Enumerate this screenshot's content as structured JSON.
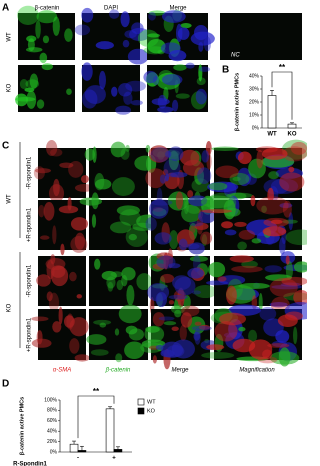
{
  "figure": {
    "A": {
      "label": "A",
      "columns": [
        "β-catenin",
        "DAPI",
        "Merge"
      ],
      "rows": [
        "WT",
        "KO"
      ],
      "control": "NC"
    },
    "B": {
      "label": "B"
    },
    "C": {
      "label": "C",
      "groups": [
        "WT",
        "KO"
      ],
      "rows": [
        "-R-spondin1",
        "+R-spondin1",
        "-R-spondin1",
        "+R-spondin1"
      ],
      "columns": [
        "α-SMA",
        "β-catenin",
        "Merge",
        "Magnification"
      ]
    },
    "D": {
      "label": "D"
    }
  },
  "chart_data": [
    {
      "type": "bar",
      "y_label": "β-catenin active PMCs",
      "categories": [
        "WT",
        "KO"
      ],
      "values": [
        25,
        3
      ],
      "errors": [
        4,
        1
      ],
      "color": "#ffffff",
      "annotation": "**",
      "ylim": [
        0,
        40
      ],
      "yticks": [
        {
          "value": 0,
          "label": "0%"
        },
        {
          "value": 10,
          "label": "10%"
        },
        {
          "value": 20,
          "label": "20%"
        },
        {
          "value": 30,
          "label": "30%"
        },
        {
          "value": 40,
          "label": "40%"
        }
      ]
    },
    {
      "type": "bar",
      "y_label": "β-catenin active PMCs",
      "x_label": "R-Spondin1",
      "categories": [
        "-",
        "+"
      ],
      "series": [
        {
          "name": "WT",
          "color": "#ffffff",
          "values": [
            15,
            83
          ],
          "errors": [
            6,
            4
          ]
        },
        {
          "name": "KO",
          "color": "#000000",
          "values": [
            3,
            5
          ],
          "errors": [
            8,
            5
          ]
        }
      ],
      "annotation": "**",
      "legend": "right",
      "ylim": [
        0,
        100
      ],
      "yticks": [
        {
          "value": 0,
          "label": "0%"
        },
        {
          "value": 20,
          "label": "20%"
        },
        {
          "value": 40,
          "label": "40%"
        },
        {
          "value": 60,
          "label": "60%"
        },
        {
          "value": 80,
          "label": "80%"
        },
        {
          "value": 100,
          "label": "100%"
        }
      ]
    }
  ]
}
